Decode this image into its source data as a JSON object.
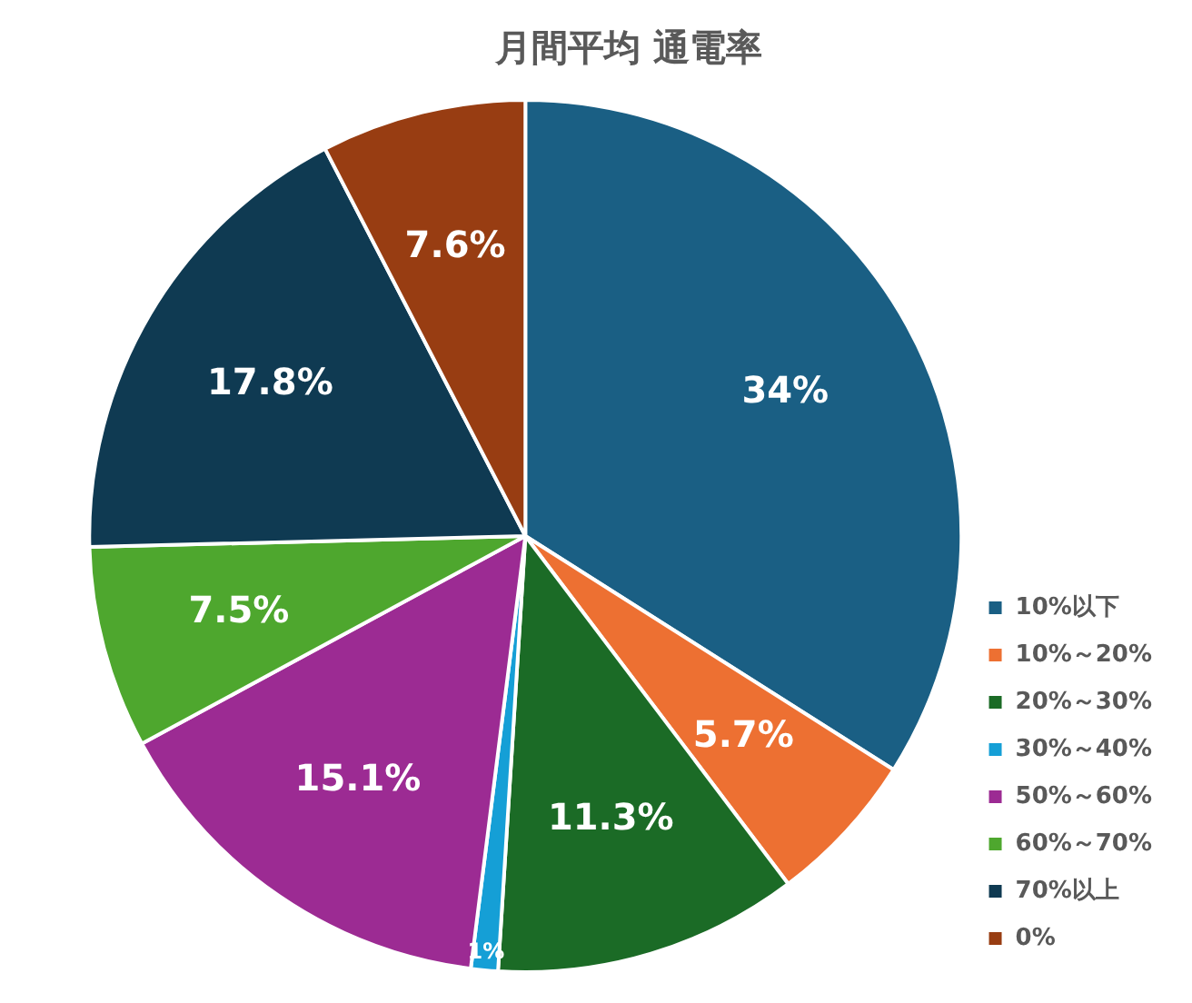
{
  "chart_data": {
    "type": "pie",
    "title": "月間平均 通電率",
    "categories": [
      "10%以下",
      "10%～20%",
      "20%～30%",
      "30%～40%",
      "50%～60%",
      "60%～70%",
      "70%以上",
      "0%"
    ],
    "values": [
      34,
      5.7,
      11.3,
      1,
      15.1,
      7.5,
      17.8,
      7.6
    ],
    "value_labels": [
      "34%",
      "5.7%",
      "11.3%",
      "1%",
      "15.1%",
      "7.5%",
      "17.8%",
      "7.6%"
    ],
    "colors": [
      "#1a5f84",
      "#ed7032",
      "#1b6b26",
      "#159fd6",
      "#9c2b93",
      "#4ea72e",
      "#0f3a52",
      "#983d12"
    ],
    "legend": "bottom right"
  }
}
